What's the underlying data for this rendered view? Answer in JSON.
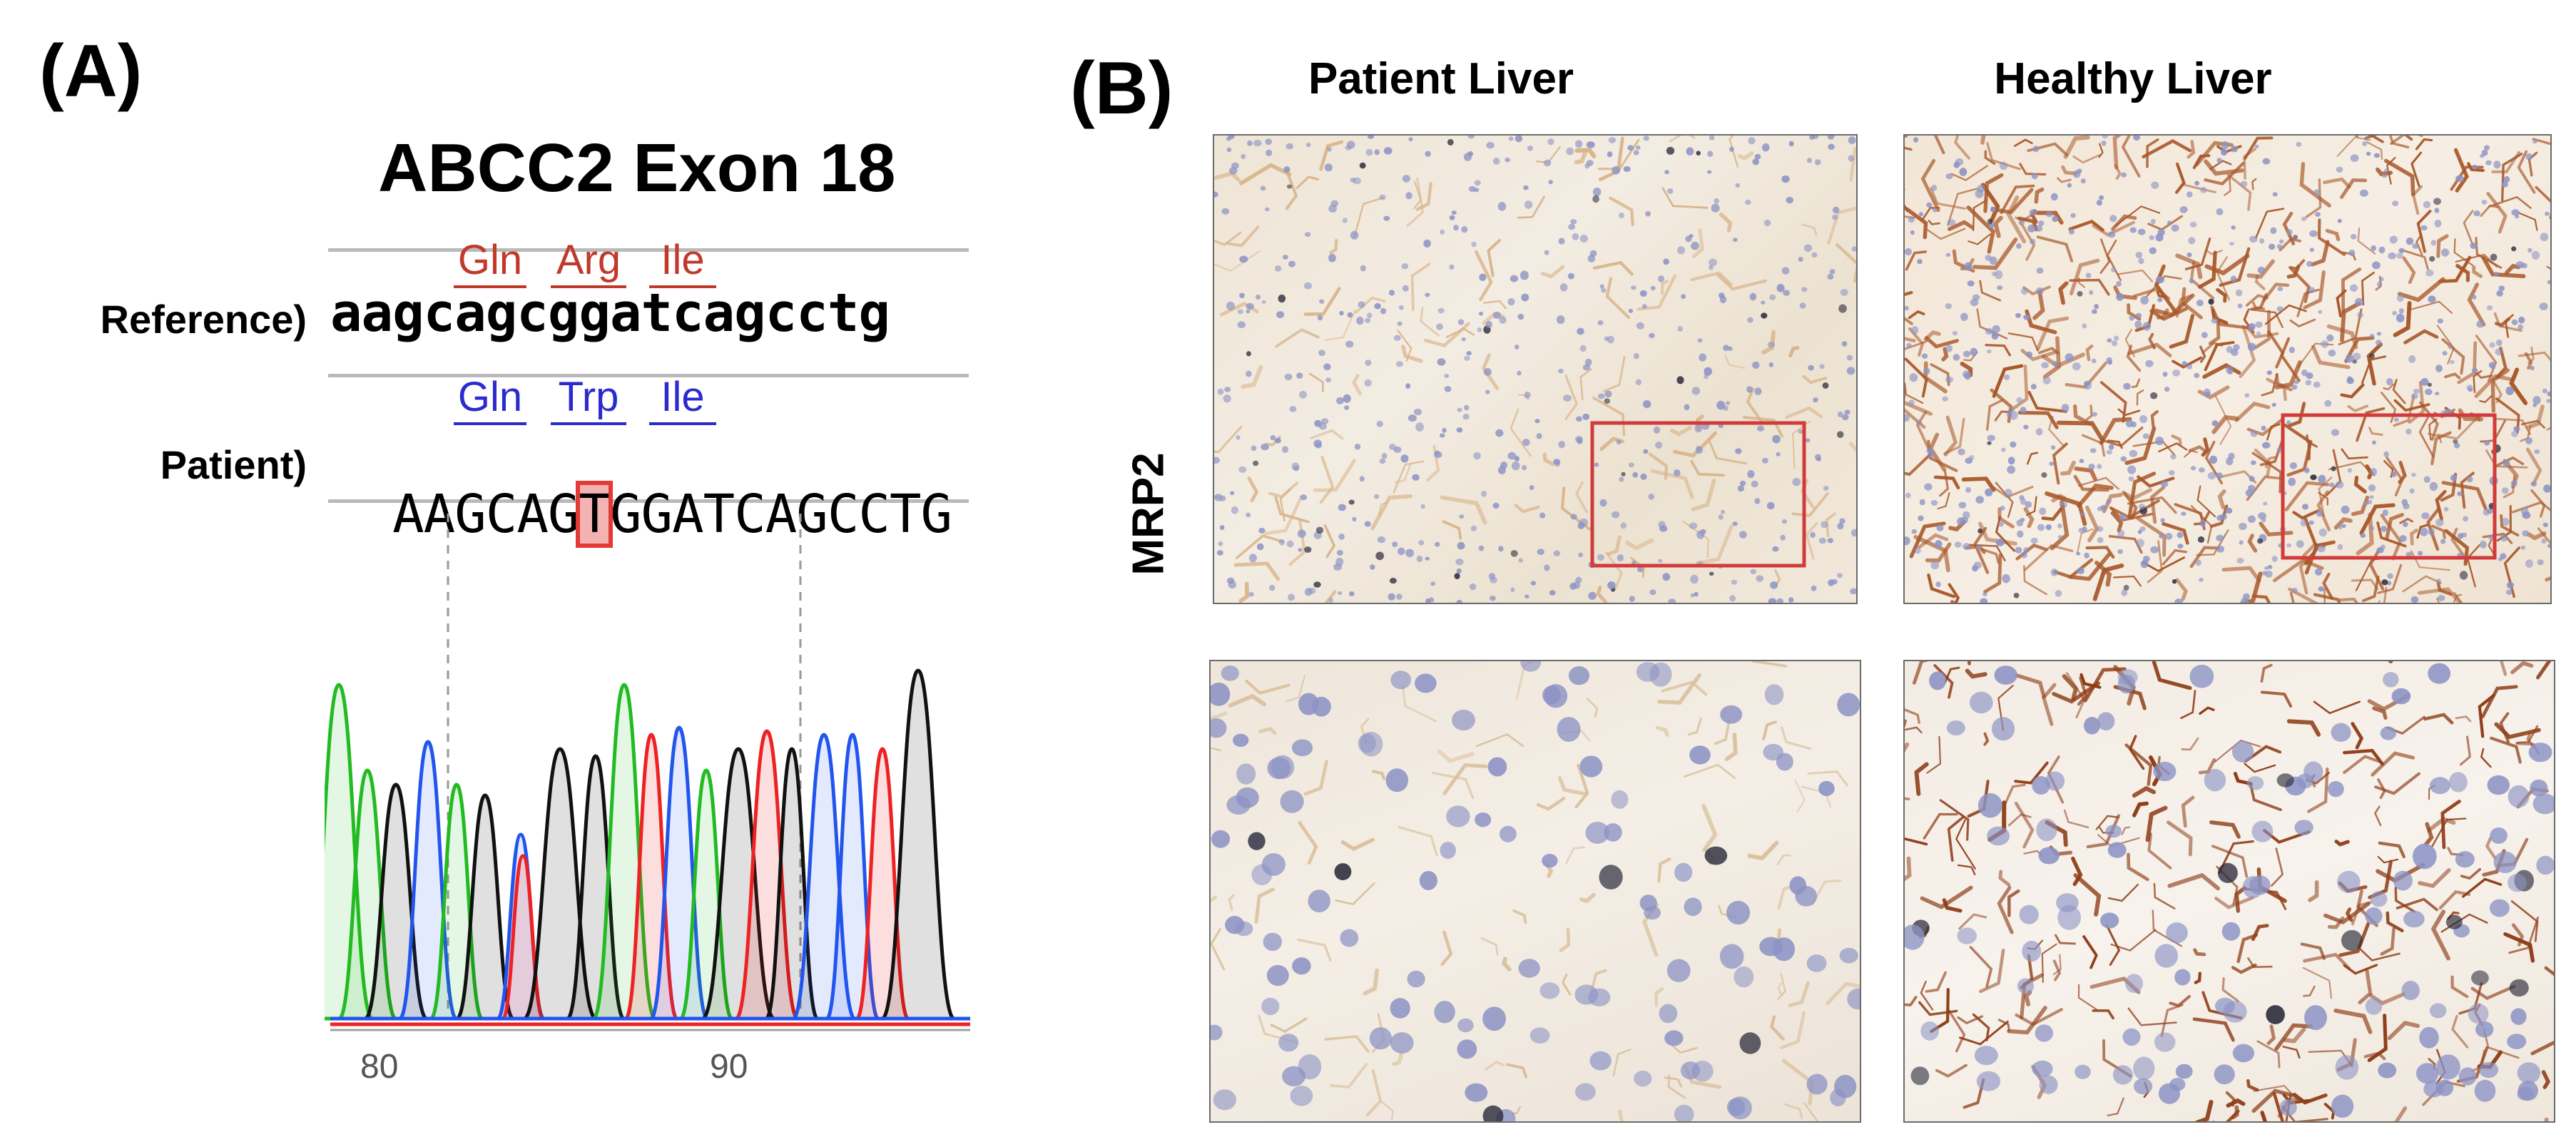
{
  "panel_a": {
    "label": "(A)",
    "title": "ABCC2 Exon 18",
    "reference": {
      "row_label": "Reference)",
      "sequence": "aagcagcggatcagcctg",
      "codons": [
        "Gln",
        "Arg",
        "Ile"
      ],
      "codon_color": "#c0392b"
    },
    "patient": {
      "row_label": "Patient)",
      "seq_left": "AAGCAG",
      "mutation": "T",
      "seq_right": "GGATCAGCCTG",
      "codons": [
        "Gln",
        "Trp",
        "Ile"
      ],
      "codon_color": "#2a2ad0",
      "mutation_color": "#e53935"
    },
    "chromatogram": {
      "x_ticks": [
        "80",
        "90"
      ],
      "base_colors": {
        "A": "#22bb22",
        "C": "#2255ee",
        "G": "#111111",
        "T": "#ee2222"
      }
    }
  },
  "panel_b": {
    "label": "(B)",
    "columns": [
      "Patient Liver",
      "Healthy Liver"
    ],
    "row_label": "MRP2",
    "box_color": "#d13b3b"
  }
}
